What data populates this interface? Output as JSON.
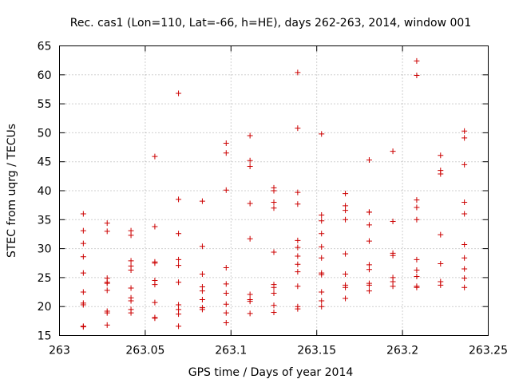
{
  "chart_data": {
    "type": "scatter",
    "title": "Rec. cas1 (Lon=110, Lat=-66, h=HE), days 262-263, 2014, window 001",
    "xlabel": "GPS time / Days of year 2014",
    "ylabel": "STEC from uqrg / TECUs",
    "xlim": [
      263,
      263.25
    ],
    "ylim": [
      15,
      65
    ],
    "x_ticks": [
      263,
      263.05,
      263.1,
      263.15,
      263.2,
      263.25
    ],
    "x_tick_labels": [
      "263",
      "263.05",
      "263.1",
      "263.15",
      "263.2",
      "263.25"
    ],
    "y_ticks": [
      15,
      20,
      25,
      30,
      35,
      40,
      45,
      50,
      55,
      60,
      65
    ],
    "y_tick_labels": [
      "15",
      "20",
      "25",
      "30",
      "35",
      "40",
      "45",
      "50",
      "55",
      "60",
      "65"
    ],
    "grid": true,
    "marker": "+",
    "color": "#cc0000",
    "series": [
      {
        "name": "STEC",
        "points": [
          [
            263.0139,
            36.0
          ],
          [
            263.0139,
            33.1
          ],
          [
            263.0139,
            30.9
          ],
          [
            263.0139,
            28.6
          ],
          [
            263.0139,
            25.8
          ],
          [
            263.0139,
            22.5
          ],
          [
            263.0139,
            20.6
          ],
          [
            263.0139,
            20.3
          ],
          [
            263.0139,
            16.6
          ],
          [
            263.0139,
            16.5
          ],
          [
            263.0278,
            34.4
          ],
          [
            263.0278,
            33.0
          ],
          [
            263.0278,
            24.9
          ],
          [
            263.0278,
            24.2
          ],
          [
            263.0278,
            24.0
          ],
          [
            263.0278,
            22.8
          ],
          [
            263.0278,
            19.2
          ],
          [
            263.0278,
            18.9
          ],
          [
            263.0278,
            16.8
          ],
          [
            263.0417,
            33.1
          ],
          [
            263.0417,
            32.3
          ],
          [
            263.0417,
            27.9
          ],
          [
            263.0417,
            27.0
          ],
          [
            263.0417,
            26.3
          ],
          [
            263.0417,
            23.2
          ],
          [
            263.0417,
            21.5
          ],
          [
            263.0417,
            21.0
          ],
          [
            263.0417,
            19.5
          ],
          [
            263.0417,
            18.9
          ],
          [
            263.0556,
            45.9
          ],
          [
            263.0556,
            33.8
          ],
          [
            263.0556,
            27.7
          ],
          [
            263.0556,
            27.5
          ],
          [
            263.0556,
            24.5
          ],
          [
            263.0556,
            23.8
          ],
          [
            263.0556,
            20.7
          ],
          [
            263.0556,
            18.0
          ],
          [
            263.0556,
            18.1
          ],
          [
            263.0694,
            56.8
          ],
          [
            263.0694,
            38.5
          ],
          [
            263.0694,
            32.6
          ],
          [
            263.0694,
            28.1
          ],
          [
            263.0694,
            27.1
          ],
          [
            263.0694,
            24.2
          ],
          [
            263.0694,
            20.3
          ],
          [
            263.0694,
            19.5
          ],
          [
            263.0694,
            18.7
          ],
          [
            263.0694,
            16.6
          ],
          [
            263.0833,
            38.2
          ],
          [
            263.0833,
            30.4
          ],
          [
            263.0833,
            25.6
          ],
          [
            263.0833,
            23.4
          ],
          [
            263.0833,
            22.7
          ],
          [
            263.0833,
            21.2
          ],
          [
            263.0833,
            19.8
          ],
          [
            263.0833,
            19.5
          ],
          [
            263.0972,
            48.2
          ],
          [
            263.0972,
            46.5
          ],
          [
            263.0972,
            40.1
          ],
          [
            263.0972,
            26.7
          ],
          [
            263.0972,
            23.9
          ],
          [
            263.0972,
            22.3
          ],
          [
            263.0972,
            20.4
          ],
          [
            263.0972,
            18.9
          ],
          [
            263.0972,
            17.2
          ],
          [
            263.1111,
            49.5
          ],
          [
            263.1111,
            45.2
          ],
          [
            263.1111,
            44.2
          ],
          [
            263.1111,
            37.8
          ],
          [
            263.1111,
            31.7
          ],
          [
            263.1111,
            22.1
          ],
          [
            263.1111,
            21.2
          ],
          [
            263.1111,
            20.9
          ],
          [
            263.1111,
            18.8
          ],
          [
            263.125,
            40.5
          ],
          [
            263.125,
            40.0
          ],
          [
            263.125,
            38.0
          ],
          [
            263.125,
            37.0
          ],
          [
            263.125,
            29.4
          ],
          [
            263.125,
            23.8
          ],
          [
            263.125,
            23.3
          ],
          [
            263.125,
            22.3
          ],
          [
            263.125,
            20.2
          ],
          [
            263.125,
            19.0
          ],
          [
            263.1389,
            60.4
          ],
          [
            263.1389,
            50.8
          ],
          [
            263.1389,
            39.7
          ],
          [
            263.1389,
            37.7
          ],
          [
            263.1389,
            31.4
          ],
          [
            263.1389,
            30.2
          ],
          [
            263.1389,
            28.7
          ],
          [
            263.1389,
            27.3
          ],
          [
            263.1389,
            26.0
          ],
          [
            263.1389,
            23.5
          ],
          [
            263.1389,
            20.0
          ],
          [
            263.1389,
            19.6
          ],
          [
            263.1528,
            49.8
          ],
          [
            263.1528,
            35.8
          ],
          [
            263.1528,
            34.8
          ],
          [
            263.1528,
            32.6
          ],
          [
            263.1528,
            30.3
          ],
          [
            263.1528,
            28.4
          ],
          [
            263.1528,
            25.8
          ],
          [
            263.1528,
            25.5
          ],
          [
            263.1528,
            22.5
          ],
          [
            263.1528,
            21.0
          ],
          [
            263.1528,
            20.0
          ],
          [
            263.1667,
            39.5
          ],
          [
            263.1667,
            37.4
          ],
          [
            263.1667,
            36.6
          ],
          [
            263.1667,
            35.0
          ],
          [
            263.1667,
            29.1
          ],
          [
            263.1667,
            25.6
          ],
          [
            263.1667,
            23.7
          ],
          [
            263.1667,
            23.3
          ],
          [
            263.1667,
            21.4
          ],
          [
            263.1806,
            45.3
          ],
          [
            263.1806,
            36.3
          ],
          [
            263.1806,
            36.3
          ],
          [
            263.1806,
            34.1
          ],
          [
            263.1806,
            31.3
          ],
          [
            263.1806,
            27.2
          ],
          [
            263.1806,
            26.4
          ],
          [
            263.1806,
            24.0
          ],
          [
            263.1806,
            23.7
          ],
          [
            263.1806,
            22.7
          ],
          [
            263.1944,
            46.8
          ],
          [
            263.1944,
            34.7
          ],
          [
            263.1944,
            29.2
          ],
          [
            263.1944,
            28.8
          ],
          [
            263.1944,
            25.0
          ],
          [
            263.1944,
            24.3
          ],
          [
            263.1944,
            23.5
          ],
          [
            263.2083,
            62.4
          ],
          [
            263.2083,
            59.9
          ],
          [
            263.2083,
            38.4
          ],
          [
            263.2083,
            37.1
          ],
          [
            263.2083,
            35.0
          ],
          [
            263.2083,
            28.1
          ],
          [
            263.2083,
            26.3
          ],
          [
            263.2083,
            25.2
          ],
          [
            263.2083,
            23.5
          ],
          [
            263.2083,
            23.3
          ],
          [
            263.2222,
            46.1
          ],
          [
            263.2222,
            43.5
          ],
          [
            263.2222,
            42.9
          ],
          [
            263.2222,
            32.4
          ],
          [
            263.2222,
            27.4
          ],
          [
            263.2222,
            24.3
          ],
          [
            263.2222,
            23.7
          ],
          [
            263.2361,
            50.3
          ],
          [
            263.2361,
            49.1
          ],
          [
            263.2361,
            44.5
          ],
          [
            263.2361,
            38.0
          ],
          [
            263.2361,
            36.0
          ],
          [
            263.2361,
            30.7
          ],
          [
            263.2361,
            28.4
          ],
          [
            263.2361,
            26.5
          ],
          [
            263.2361,
            24.9
          ],
          [
            263.2361,
            23.3
          ]
        ]
      }
    ]
  }
}
